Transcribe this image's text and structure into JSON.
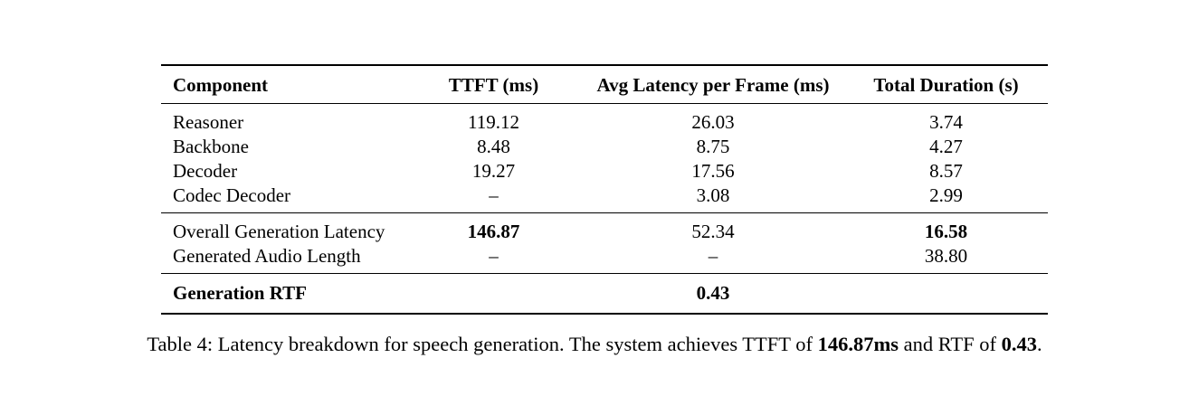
{
  "page": {
    "background_color": "#ffffff",
    "text_color": "#000000"
  },
  "table": {
    "headers": {
      "component": "Component",
      "ttft": "TTFT (ms)",
      "avg_latency": "Avg Latency per Frame (ms)",
      "total_duration": "Total Duration (s)"
    },
    "rows": [
      {
        "component": "Reasoner",
        "ttft": "119.12",
        "avg_latency": "26.03",
        "total_duration": "3.74"
      },
      {
        "component": "Backbone",
        "ttft": "8.48",
        "avg_latency": "8.75",
        "total_duration": "4.27"
      },
      {
        "component": "Decoder",
        "ttft": "19.27",
        "avg_latency": "17.56",
        "total_duration": "8.57"
      },
      {
        "component": "Codec Decoder",
        "ttft": "–",
        "avg_latency": "3.08",
        "total_duration": "2.99"
      }
    ],
    "summary_rows": [
      {
        "component": "Overall Generation Latency",
        "ttft": "146.87",
        "avg_latency": "52.34",
        "total_duration": "16.58"
      },
      {
        "component": "Generated Audio Length",
        "ttft": "–",
        "avg_latency": "–",
        "total_duration": "38.80"
      }
    ],
    "rtf_row": {
      "component": "Generation RTF",
      "avg_latency": "0.43"
    }
  },
  "caption": {
    "label": "Table 4:",
    "text_1": "Latency breakdown for speech generation. The system achieves TTFT of",
    "bold_1": "146.87ms",
    "text_2": "and RTF of",
    "bold_2": "0.43",
    "period": "."
  }
}
